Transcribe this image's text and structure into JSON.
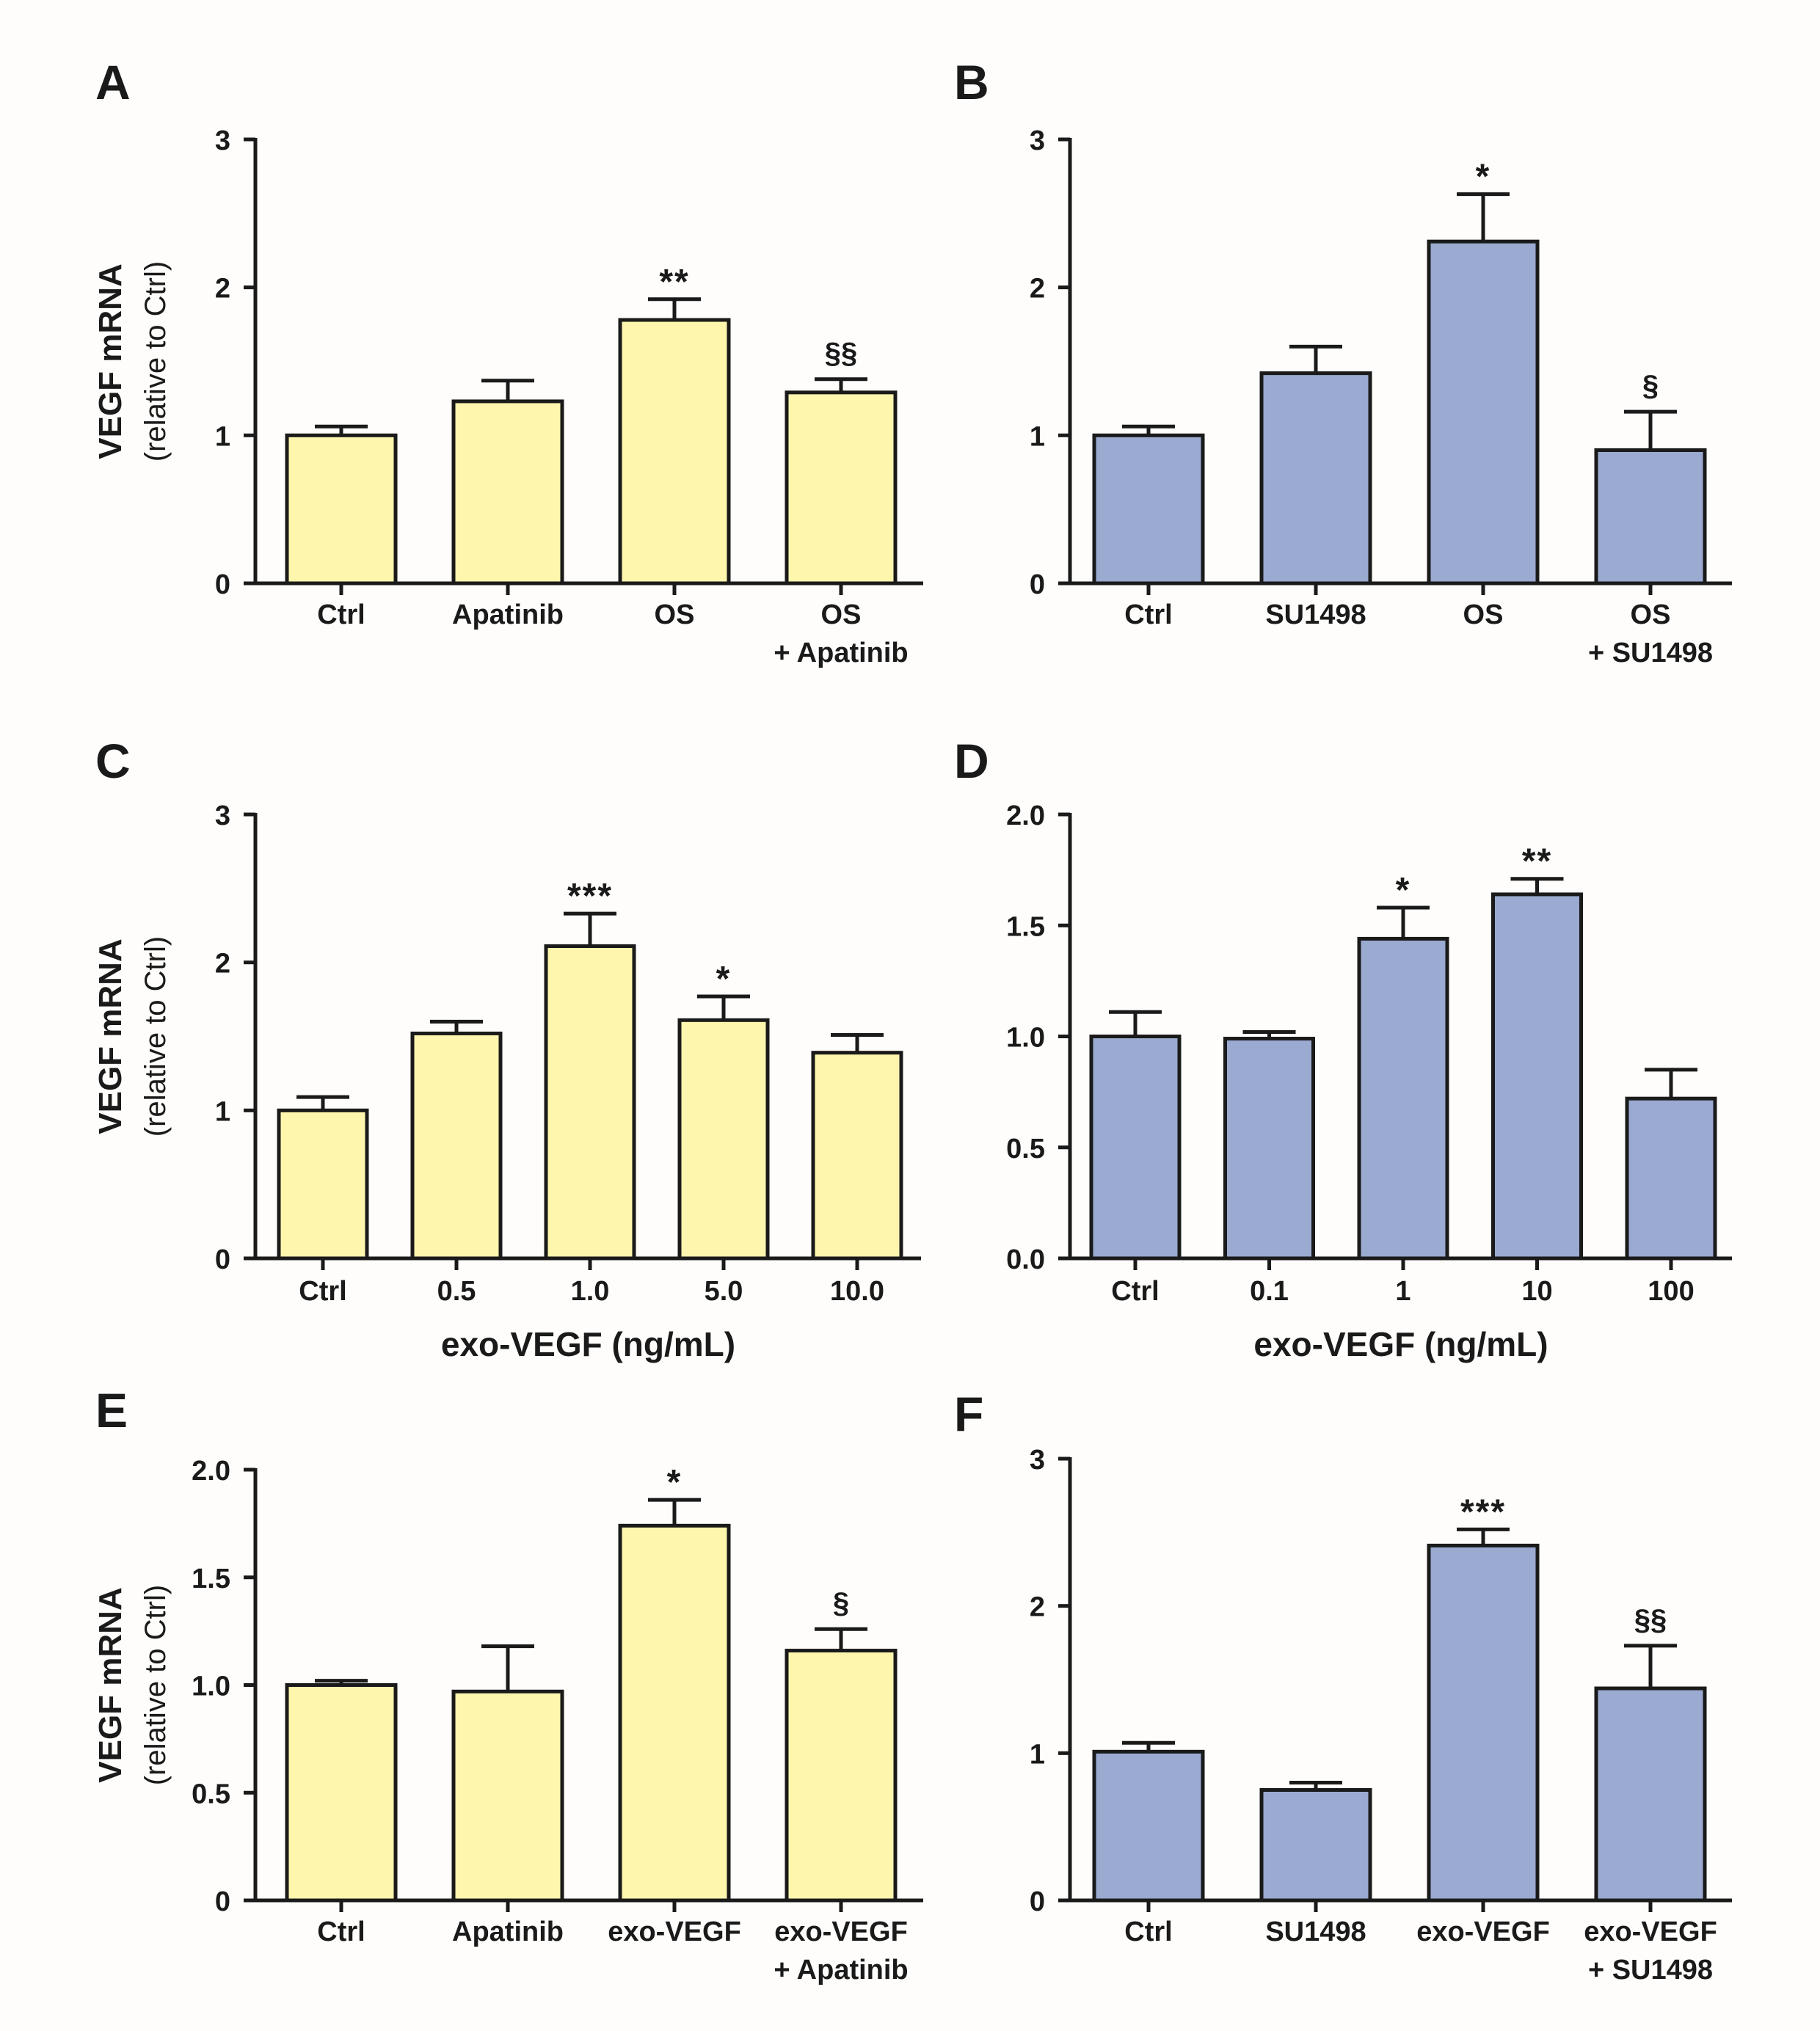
{
  "figure": {
    "y_axis_title_line1": "VEGF mRNA",
    "y_axis_title_line2": "(relative to Ctrl)"
  },
  "colors": {
    "yellow_bar": "#fff6ae",
    "blue_bar": "#9aaad1",
    "axis": "#1a1a1a",
    "background": "#fefdfb"
  },
  "chart_data": [
    {
      "panel": "A",
      "type": "bar",
      "color": "yellow",
      "ylabel": "VEGF mRNA (relative to Ctrl)",
      "xlabel": "",
      "ylim": [
        0,
        3
      ],
      "yticks": [
        0,
        1,
        2,
        3
      ],
      "ytick_labels": [
        "0",
        "1",
        "2",
        "3"
      ],
      "categories": [
        [
          "Ctrl"
        ],
        [
          "Apatinib"
        ],
        [
          "OS"
        ],
        [
          "OS",
          "+ Apatinib"
        ]
      ],
      "values": [
        1.0,
        1.23,
        1.78,
        1.29
      ],
      "errors": [
        0.06,
        0.14,
        0.14,
        0.09
      ],
      "annotations": [
        "",
        "",
        "**",
        "§§"
      ]
    },
    {
      "panel": "B",
      "type": "bar",
      "color": "blue",
      "ylabel": "",
      "xlabel": "",
      "ylim": [
        0,
        3
      ],
      "yticks": [
        0,
        1,
        2,
        3
      ],
      "ytick_labels": [
        "0",
        "1",
        "2",
        "3"
      ],
      "categories": [
        [
          "Ctrl"
        ],
        [
          "SU1498"
        ],
        [
          "OS"
        ],
        [
          "OS",
          "+ SU1498"
        ]
      ],
      "values": [
        1.0,
        1.42,
        2.31,
        0.9
      ],
      "errors": [
        0.06,
        0.18,
        0.32,
        0.26
      ],
      "annotations": [
        "",
        "",
        "*",
        "§"
      ]
    },
    {
      "panel": "C",
      "type": "bar",
      "color": "yellow",
      "ylabel": "VEGF mRNA (relative to Ctrl)",
      "xlabel": "exo-VEGF (ng/mL)",
      "ylim": [
        0,
        3
      ],
      "yticks": [
        0,
        1,
        2,
        3
      ],
      "ytick_labels": [
        "0",
        "1",
        "2",
        "3"
      ],
      "categories": [
        [
          "Ctrl"
        ],
        [
          "0.5"
        ],
        [
          "1.0"
        ],
        [
          "5.0"
        ],
        [
          "10.0"
        ]
      ],
      "values": [
        1.0,
        1.52,
        2.11,
        1.61,
        1.39
      ],
      "errors": [
        0.09,
        0.08,
        0.22,
        0.16,
        0.12
      ],
      "annotations": [
        "",
        "",
        "***",
        "*",
        ""
      ]
    },
    {
      "panel": "D",
      "type": "bar",
      "color": "blue",
      "ylabel": "",
      "xlabel": "exo-VEGF (ng/mL)",
      "ylim": [
        0,
        2
      ],
      "yticks": [
        0,
        0.5,
        1,
        1.5,
        2
      ],
      "ytick_labels": [
        "0.0",
        "0.5",
        "1.0",
        "1.5",
        "2.0"
      ],
      "categories": [
        [
          "Ctrl"
        ],
        [
          "0.1"
        ],
        [
          "1"
        ],
        [
          "10"
        ],
        [
          "100"
        ]
      ],
      "values": [
        1.0,
        0.99,
        1.44,
        1.64,
        0.72
      ],
      "errors": [
        0.11,
        0.03,
        0.14,
        0.07,
        0.13
      ],
      "annotations": [
        "",
        "",
        "*",
        "**",
        ""
      ]
    },
    {
      "panel": "E",
      "type": "bar",
      "color": "yellow",
      "ylabel": "VEGF mRNA (relative to Ctrl)",
      "xlabel": "",
      "ylim": [
        0,
        2
      ],
      "yticks": [
        0,
        0.5,
        1,
        1.5,
        2
      ],
      "ytick_labels": [
        "0",
        "0.5",
        "1.0",
        "1.5",
        "2.0"
      ],
      "categories": [
        [
          "Ctrl"
        ],
        [
          "Apatinib"
        ],
        [
          "exo-VEGF"
        ],
        [
          "exo-VEGF",
          "+ Apatinib"
        ]
      ],
      "values": [
        1.0,
        0.97,
        1.74,
        1.16
      ],
      "errors": [
        0.02,
        0.21,
        0.12,
        0.1
      ],
      "annotations": [
        "",
        "",
        "*",
        "§"
      ]
    },
    {
      "panel": "F",
      "type": "bar",
      "color": "blue",
      "ylabel": "",
      "xlabel": "",
      "ylim": [
        0,
        3
      ],
      "yticks": [
        0,
        1,
        2,
        3
      ],
      "ytick_labels": [
        "0",
        "1",
        "2",
        "3"
      ],
      "categories": [
        [
          "Ctrl"
        ],
        [
          "SU1498"
        ],
        [
          "exo-VEGF"
        ],
        [
          "exo-VEGF",
          "+ SU1498"
        ]
      ],
      "values": [
        1.01,
        0.75,
        2.41,
        1.44
      ],
      "errors": [
        0.06,
        0.05,
        0.11,
        0.29
      ],
      "annotations": [
        "",
        "",
        "***",
        "§§"
      ]
    }
  ]
}
